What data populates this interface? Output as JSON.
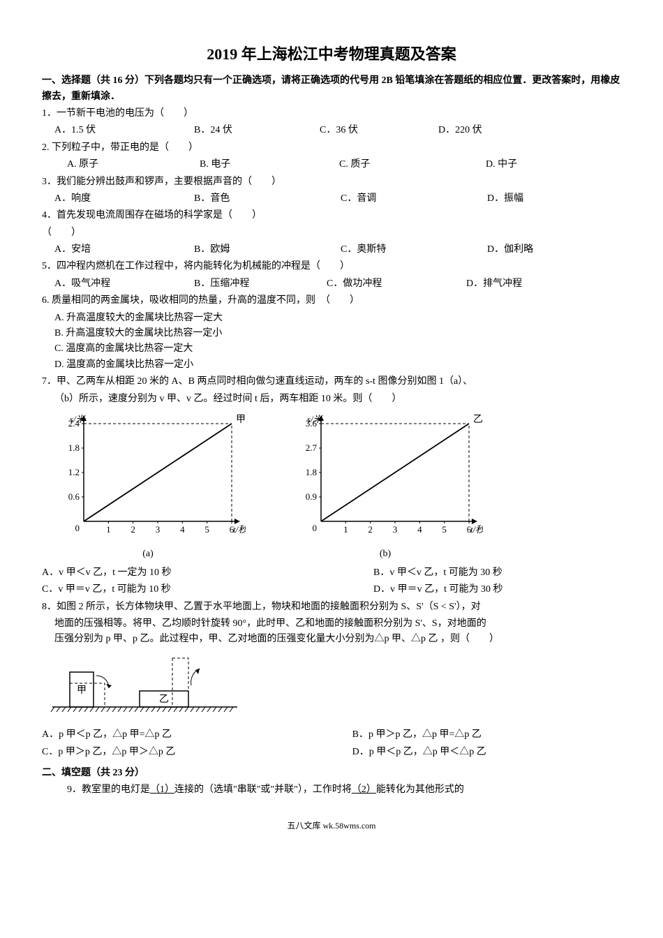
{
  "title": "2019 年上海松江中考物理真题及答案",
  "section1_heading": "一、选择题（共 16 分）下列各题均只有一个正确选项，请将正确选项的代号用 2B 铅笔填涂在答题纸的相应位置．更改答案时，用橡皮擦去，重新填涂．",
  "q1": {
    "stem": "1．一节新干电池的电压为（　　）",
    "A": "A．1.5 伏",
    "B": "B．24 伏",
    "C": "C．36 伏",
    "D": "D．220 伏"
  },
  "q2": {
    "stem": "2. 下列粒子中，带正电的是（　　）",
    "A": "A. 原子",
    "B": "B. 电子",
    "C": "C. 质子",
    "D": "D. 中子"
  },
  "q3": {
    "stem": "3．我们能分辨出鼓声和锣声，主要根据声音的（　　）",
    "A": "A．响度",
    "B": "B．音色",
    "C": "C．音调",
    "D": "D．振幅"
  },
  "q4": {
    "stem": "4．首先发现电流周围存在磁场的科学家是（　　）",
    "paren": "（　　）",
    "A": "A．安培",
    "B": "B．欧姆",
    "C": "C．奥斯特",
    "D": "D．伽利略"
  },
  "q5": {
    "stem": "5．四冲程内燃机在工作过程中，将内能转化为机械能的冲程是（　　）",
    "A": "A．吸气冲程",
    "B": "B．压缩冲程",
    "C": "C．做功冲程",
    "D": "D．排气冲程"
  },
  "q6": {
    "stem": "6. 质量相同的两金属块，吸收相同的热量，升高的温度不同，则　（　　）",
    "A": "A. 升高温度较大的金属块比热容一定大",
    "B": "B. 升高温度较大的金属块比热容一定小",
    "C": "C. 温度高的金属块比热容一定大",
    "D": "D. 温度高的金属块比热容一定小"
  },
  "q7": {
    "stem1": "7．甲、乙两车从相距 20 米的 A、B 两点同时相向做匀速直线运动，两车的 s-t 图像分别如图 1（a）、",
    "stem2": "（b）所示，速度分别为 v 甲、v 乙。经过时间 t 后，两车相距 10 米。则（　　）",
    "A": "A．v 甲＜v 乙，t 一定为 10 秒",
    "B": "B．v 甲＜v 乙，t 可能为 30 秒",
    "C": "C．v 甲＝v 乙，t 可能为 10 秒",
    "D": "D．v 甲＝v 乙，t 可能为 30 秒"
  },
  "chart_a": {
    "type": "line",
    "ylabel": "s/米",
    "xlabel": "t/秒",
    "yticks": [
      0,
      0.6,
      1.2,
      1.8,
      2.4
    ],
    "xticks": [
      1,
      2,
      3,
      4,
      5,
      6
    ],
    "series_label": "甲",
    "x_data": [
      0,
      6
    ],
    "y_data": [
      0,
      2.4
    ],
    "line_color": "#000000",
    "axis_color": "#000000",
    "tick_color": "#000000",
    "dash_color": "#000000",
    "background": "#ffffff",
    "caption": "(a)",
    "fontsize": 13
  },
  "chart_b": {
    "type": "line",
    "ylabel": "s/米",
    "xlabel": "t/秒",
    "yticks": [
      0,
      0.9,
      1.8,
      2.7,
      3.6
    ],
    "xticks": [
      1,
      2,
      3,
      4,
      5,
      6
    ],
    "series_label": "乙",
    "x_data": [
      0,
      6
    ],
    "y_data": [
      0,
      3.6
    ],
    "line_color": "#000000",
    "axis_color": "#000000",
    "tick_color": "#000000",
    "dash_color": "#000000",
    "background": "#ffffff",
    "caption": "(b)",
    "fontsize": 13
  },
  "q8": {
    "stem1": "8．如图 2 所示，长方体物块甲、乙置于水平地面上，物块和地面的接触面积分别为 S、S'（S < S'），对",
    "stem2": "地面的压强相等。将甲、乙均顺时针旋转 90°，此时甲、乙和地面的接触面积分别为 S'、S，对地面的",
    "stem3": "压强分别为 p 甲、p 乙。此过程中，甲、乙对地面的压强变化量大小分别为△p 甲、△p 乙 ，则（　　）",
    "A": "A．p 甲＜p 乙，△p 甲=△p 乙",
    "B": "B．p 甲＞p 乙，△p 甲=△p 乙",
    "C": "C．p 甲＞p 乙，△p 甲＞△p 乙",
    "D": "D．p 甲＜p 乙，△p 甲＜△p 乙"
  },
  "diagram8": {
    "block1_label": "甲",
    "block2_label": "乙",
    "line_color": "#000000",
    "dash_color": "#000000",
    "ground_color": "#000000",
    "background": "#ffffff"
  },
  "section2_heading": "二、填空题（共 23 分）",
  "q9": {
    "pre": "9．教室里的电灯是",
    "u1": "（1）",
    "mid1": "连接的（选填\"串联\"或\"并联\"），工作时将",
    "u2": "（2）",
    "post": "能转化为其他形式的"
  },
  "footer": "五八文库 wk.58wms.com"
}
